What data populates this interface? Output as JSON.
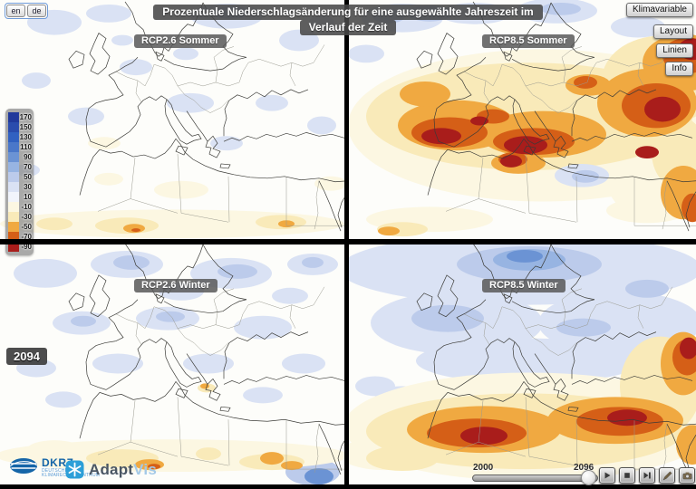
{
  "app": {
    "title_line1": "Prozentuale Niederschlagsänderung für eine ausgewählte Jahreszeit im",
    "title_line2": "Verlauf der Zeit"
  },
  "language": {
    "en": "en",
    "de": "de"
  },
  "menu": {
    "buttons": [
      "Klimavariable",
      "Layout",
      "Linien",
      "Info"
    ]
  },
  "panels": [
    {
      "label": "RCP2.6 Sommer"
    },
    {
      "label": "RCP8.5 Sommer"
    },
    {
      "label": "RCP2.6 Winter"
    },
    {
      "label": "RCP8.5 Winter"
    }
  ],
  "legend": {
    "values": [
      "170",
      "150",
      "130",
      "110",
      "90",
      "70",
      "50",
      "30",
      "10",
      "-10",
      "-30",
      "-50",
      "-70",
      "-90"
    ],
    "colors": [
      "#21399b",
      "#2a4cad",
      "#3161c1",
      "#4a77c9",
      "#6b93d4",
      "#97b4e2",
      "#bccbeb",
      "#dae2f4",
      "#f1f4fb",
      "#fcf7e2",
      "#f9eab9",
      "#f0a941",
      "#d55f17",
      "#a91d1b"
    ]
  },
  "year_badge": "2094",
  "timeline": {
    "start_label": "2000",
    "end_label": "2096"
  },
  "controls": [
    {
      "icon": "play-icon"
    },
    {
      "icon": "stop-icon"
    },
    {
      "icon": "step-forward-icon"
    },
    {
      "icon": "snapshot-icon"
    },
    {
      "icon": "record-icon"
    }
  ],
  "logos": {
    "dkrz": "DKRZ",
    "dkrz_subtitle": "DEUTSCHES KLIMARECHENZENTRUM",
    "adaptvis_prefix": "Adapt",
    "adaptvis_suffix": "Vis"
  }
}
